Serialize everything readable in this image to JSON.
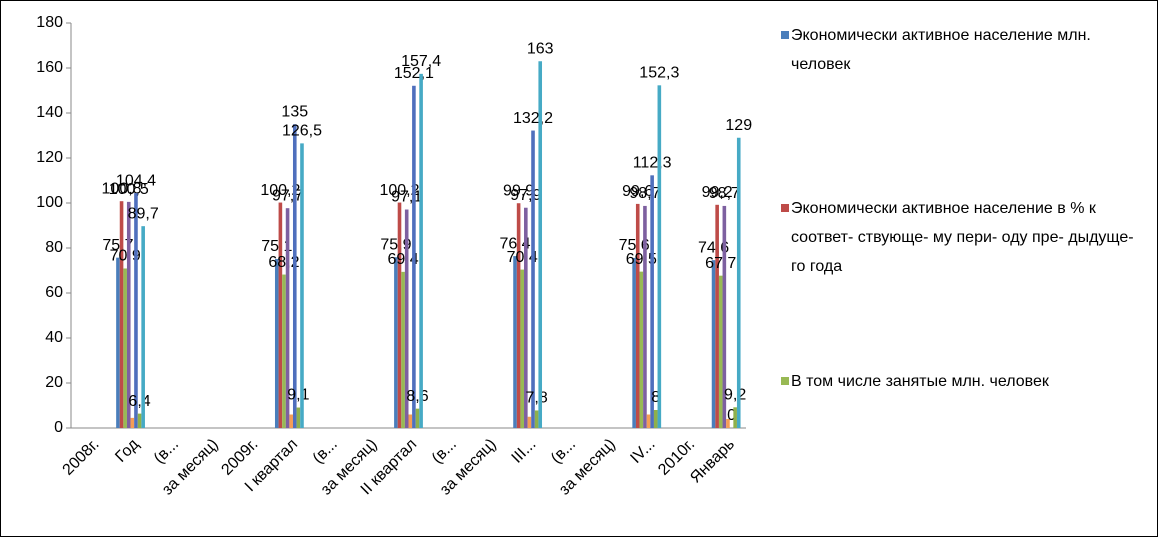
{
  "chart_data": {
    "type": "bar",
    "categories": [
      "2008г.",
      "Год",
      "(в...",
      "за месяц)",
      "2009г.",
      "I квартал",
      "(в...",
      "за месяц)",
      "II квартал",
      "(в...",
      "за месяц)",
      "III...",
      "(в...",
      "за месяц)",
      "IV...",
      "2010г.",
      "Январь"
    ],
    "series": [
      {
        "name": "Экономически активное население млн. человек",
        "color": "#4a7ebb",
        "values": [
          null,
          75.7,
          null,
          null,
          null,
          75.1,
          null,
          null,
          75.9,
          null,
          null,
          76.4,
          null,
          null,
          75.6,
          null,
          74.6
        ],
        "value_labels": [
          null,
          "75,7",
          null,
          null,
          null,
          "75,1",
          null,
          null,
          "75,9",
          null,
          null,
          "76,4",
          null,
          null,
          "75,6",
          null,
          "74,6"
        ]
      },
      {
        "name": "Экономически активное население в % к соответ- ствующе- му пери- оду пре- дыдуще-го года",
        "color": "#be4b48",
        "values": [
          null,
          100.8,
          null,
          null,
          null,
          100.2,
          null,
          null,
          100.2,
          null,
          null,
          99.9,
          null,
          null,
          99.6,
          null,
          99.2
        ],
        "value_labels": [
          null,
          "100,8",
          null,
          null,
          null,
          "100,2",
          null,
          null,
          "100,2",
          null,
          null,
          "99,9",
          null,
          null,
          "99,6",
          null,
          "99,2"
        ]
      },
      {
        "name": "В том числе занятые млн. человек",
        "color": "#98b954",
        "values": [
          null,
          70.9,
          null,
          null,
          null,
          68.2,
          null,
          null,
          69.4,
          null,
          null,
          70.4,
          null,
          null,
          69.5,
          null,
          67.7
        ],
        "value_labels": [
          null,
          "70,9",
          null,
          null,
          null,
          "68,2",
          null,
          null,
          "69,4",
          null,
          null,
          "70,4",
          null,
          null,
          "69,5",
          null,
          "67,7"
        ]
      },
      {
        "color": "#7d60a0",
        "values": [
          null,
          100.5,
          null,
          null,
          null,
          97.7,
          null,
          null,
          97.1,
          null,
          null,
          97.9,
          null,
          null,
          98.7,
          null,
          98.7
        ],
        "value_labels": [
          null,
          "100,5",
          null,
          null,
          null,
          "97,7",
          null,
          null,
          "97,1",
          null,
          null,
          "97,9",
          null,
          null,
          "98,7",
          null,
          "98,7"
        ]
      },
      {
        "color": "#f59d56",
        "values": [
          null,
          4.5,
          null,
          null,
          null,
          6,
          null,
          null,
          6,
          null,
          null,
          5,
          null,
          null,
          6,
          null,
          4
        ]
      },
      {
        "color": "#4f6fbd",
        "values": [
          null,
          104.4,
          null,
          null,
          null,
          135,
          null,
          null,
          152.1,
          null,
          null,
          132.2,
          null,
          null,
          112.3,
          null,
          0
        ],
        "value_labels": [
          null,
          "104,4",
          null,
          null,
          null,
          "135",
          null,
          null,
          "152,1",
          null,
          null,
          "132,2",
          null,
          null,
          "112,3",
          null,
          "0"
        ]
      },
      {
        "color": "#8fb04c",
        "values": [
          null,
          6.4,
          null,
          null,
          null,
          9.1,
          null,
          null,
          8.6,
          null,
          null,
          7.8,
          null,
          null,
          8,
          null,
          9.2
        ],
        "value_labels": [
          null,
          "6,4",
          null,
          null,
          null,
          "9,1",
          null,
          null,
          "8,6",
          null,
          null,
          "7,8",
          null,
          null,
          "8",
          null,
          "9,2"
        ]
      },
      {
        "color": "#46aac5",
        "values": [
          null,
          89.7,
          null,
          null,
          null,
          126.5,
          null,
          null,
          157.4,
          null,
          null,
          163,
          null,
          null,
          152.3,
          null,
          129
        ],
        "value_labels": [
          null,
          "89,7",
          null,
          null,
          null,
          "126,5",
          null,
          null,
          "157,4",
          null,
          null,
          "163",
          null,
          null,
          "152,3",
          null,
          "129"
        ]
      }
    ],
    "ylim": [
      0,
      180
    ],
    "yticks": [
      0,
      20,
      40,
      60,
      80,
      100,
      120,
      140,
      160,
      180
    ],
    "grid": false,
    "legend": "right"
  }
}
